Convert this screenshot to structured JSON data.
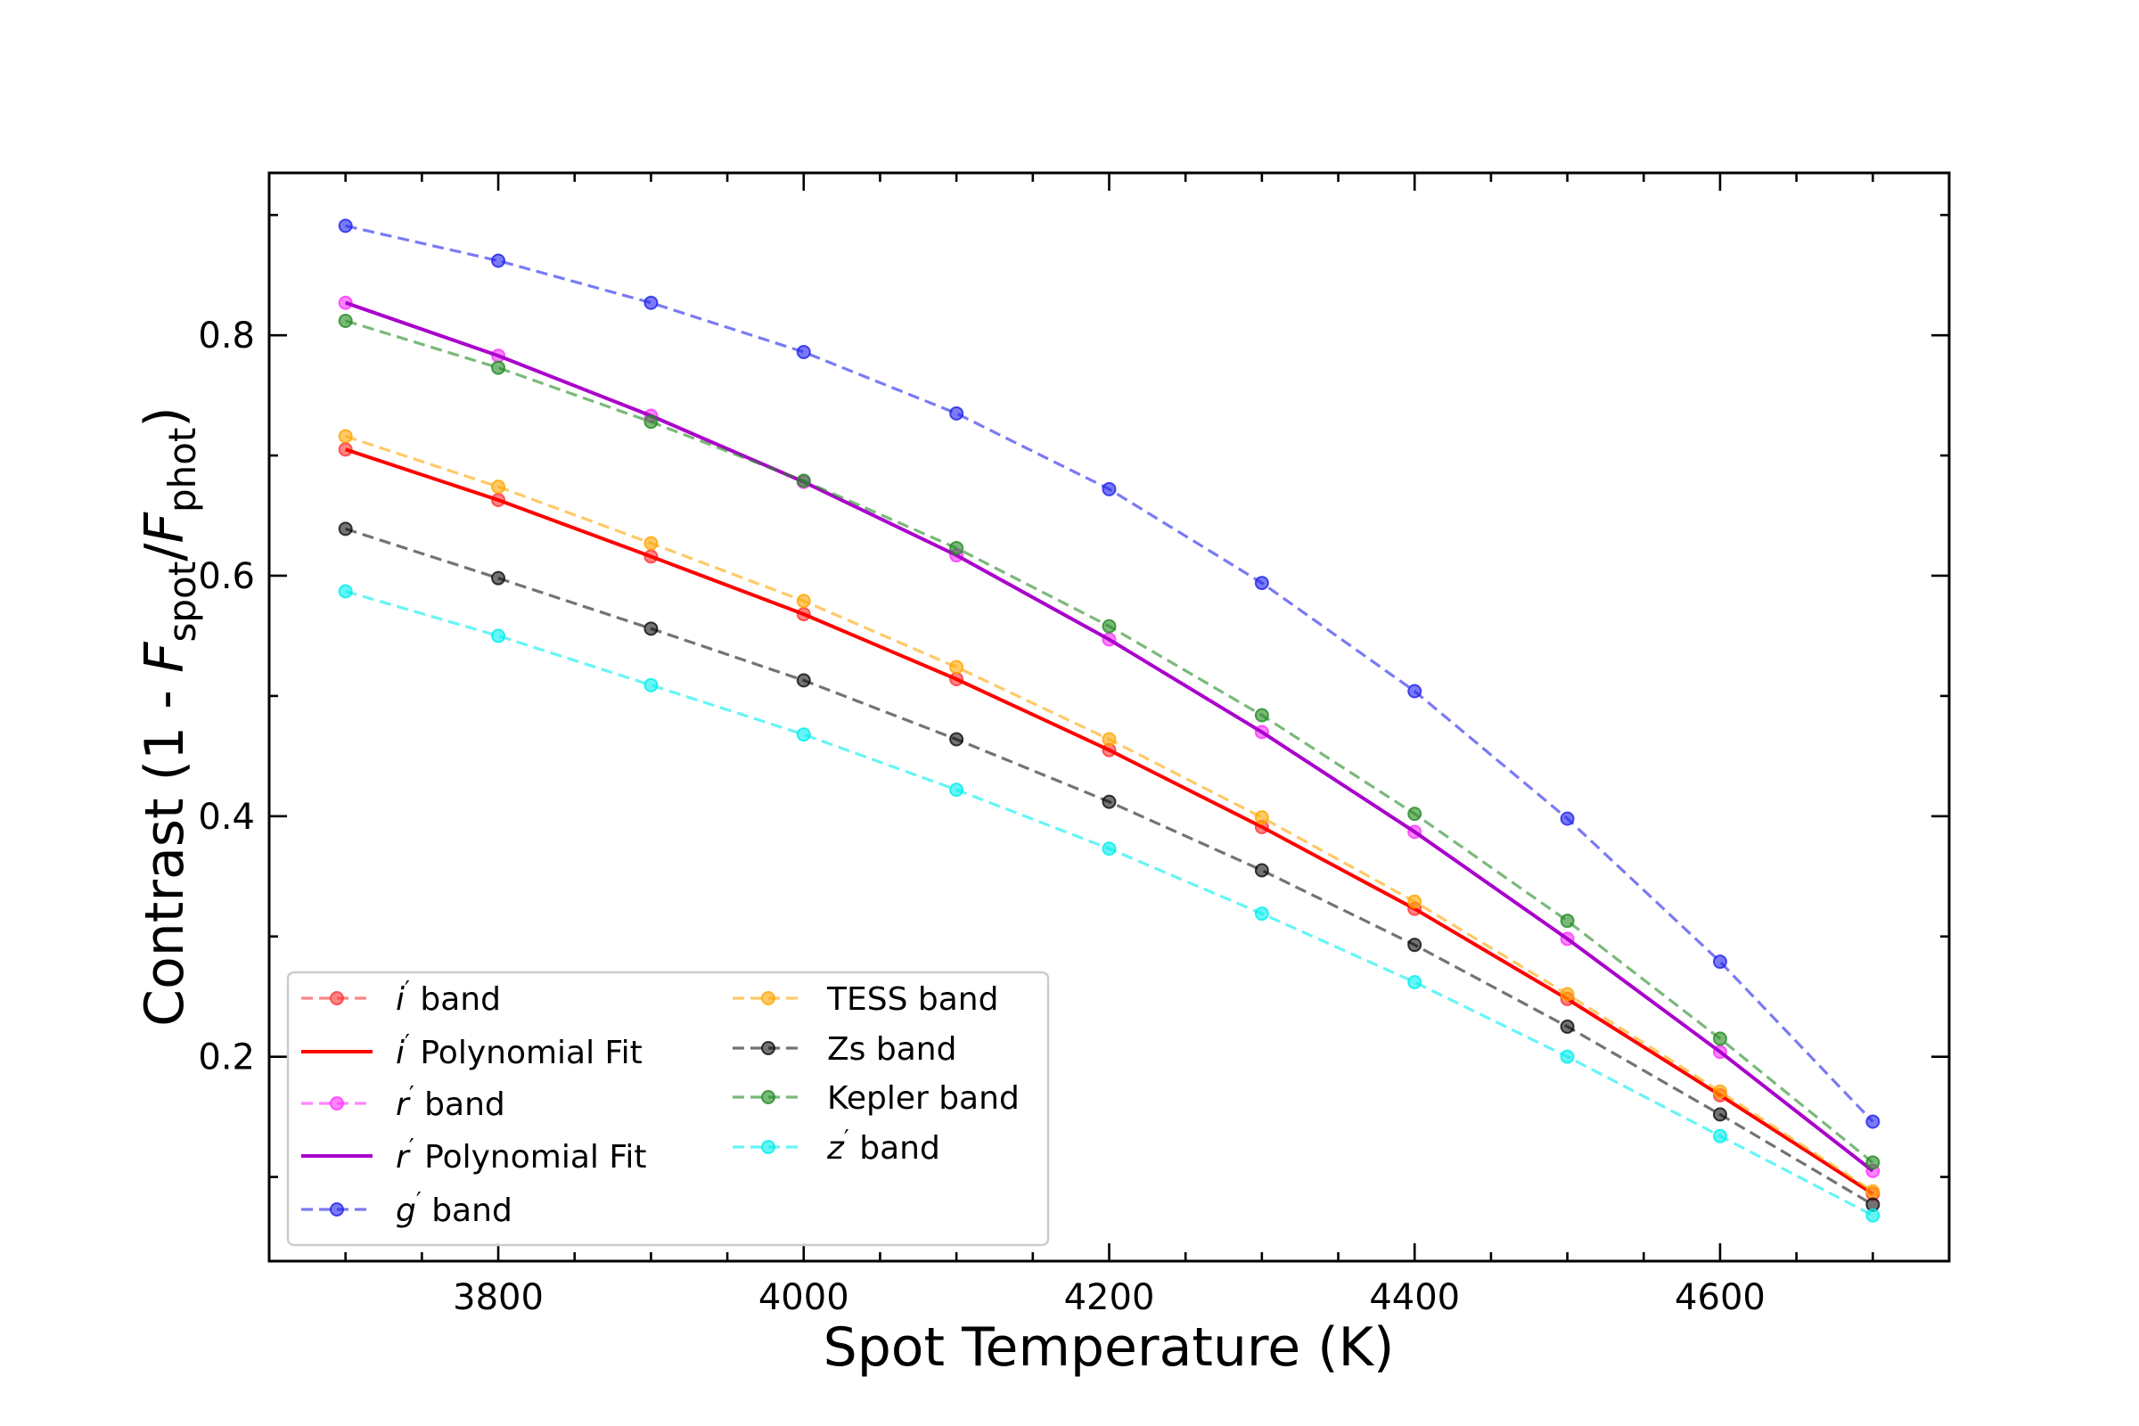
{
  "chart_data": {
    "type": "line",
    "title": "",
    "xlabel": "Spot Temperature (K)",
    "ylabel": {
      "prefix": "Contrast (1 - ",
      "f1": "F",
      "s1": "spot",
      "slash": "/",
      "f2": "F",
      "s2": "phot",
      "suffix": ")"
    },
    "xlim": [
      3650,
      4750
    ],
    "ylim": [
      0.03,
      0.935
    ],
    "xticks": [
      "3800",
      "4000",
      "4200",
      "4400",
      "4600"
    ],
    "yticks": [
      "0.2",
      "0.4",
      "0.6",
      "0.8"
    ],
    "grid": false,
    "legend_position": "lower-left",
    "x": [
      3700,
      3800,
      3900,
      4000,
      4100,
      4200,
      4300,
      4400,
      4500,
      4600,
      4700
    ],
    "series": [
      {
        "key": "i-band",
        "name": {
          "sym": "i",
          "rest": " band"
        },
        "style": "dashed-marker",
        "color": "#ff3333",
        "opacity": 0.6,
        "values": [
          0.705,
          0.663,
          0.616,
          0.568,
          0.514,
          0.455,
          0.391,
          0.323,
          0.248,
          0.168,
          0.086
        ]
      },
      {
        "key": "i-fit",
        "name": {
          "sym": "i",
          "rest": " Polynomial Fit"
        },
        "style": "solid",
        "color": "#ff0000",
        "opacity": 1,
        "values": [
          0.705,
          0.663,
          0.616,
          0.568,
          0.514,
          0.455,
          0.391,
          0.323,
          0.248,
          0.168,
          0.086
        ]
      },
      {
        "key": "r-band",
        "name": {
          "sym": "r",
          "rest": " band"
        },
        "style": "dashed-marker",
        "color": "#ff33ff",
        "opacity": 0.6,
        "values": [
          0.827,
          0.783,
          0.733,
          0.678,
          0.617,
          0.547,
          0.47,
          0.387,
          0.298,
          0.204,
          0.105
        ]
      },
      {
        "key": "r-fit",
        "name": {
          "sym": "r",
          "rest": " Polynomial Fit"
        },
        "style": "solid",
        "color": "#aa00cc",
        "opacity": 1,
        "values": [
          0.827,
          0.783,
          0.733,
          0.678,
          0.617,
          0.547,
          0.47,
          0.387,
          0.298,
          0.204,
          0.105
        ]
      },
      {
        "key": "g-band",
        "name": {
          "sym": "g",
          "rest": " band"
        },
        "style": "dashed-marker",
        "color": "#2222ee",
        "opacity": 0.6,
        "values": [
          0.891,
          0.862,
          0.827,
          0.786,
          0.735,
          0.672,
          0.594,
          0.504,
          0.398,
          0.279,
          0.146
        ]
      },
      {
        "key": "tess",
        "name": {
          "sym": "",
          "rest": "TESS band"
        },
        "style": "dashed-marker",
        "color": "#ffa500",
        "opacity": 0.6,
        "values": [
          0.716,
          0.674,
          0.627,
          0.579,
          0.524,
          0.464,
          0.399,
          0.329,
          0.252,
          0.171,
          0.088
        ]
      },
      {
        "key": "zs",
        "name": {
          "sym": "",
          "rest": "Zs band"
        },
        "style": "dashed-marker",
        "color": "#000000",
        "opacity": 0.55,
        "values": [
          0.639,
          0.598,
          0.556,
          0.513,
          0.464,
          0.412,
          0.355,
          0.293,
          0.225,
          0.152,
          0.077
        ]
      },
      {
        "key": "kepler",
        "name": {
          "sym": "",
          "rest": "Kepler band"
        },
        "style": "dashed-marker",
        "color": "#228b22",
        "opacity": 0.6,
        "values": [
          0.812,
          0.773,
          0.728,
          0.679,
          0.623,
          0.558,
          0.484,
          0.402,
          0.313,
          0.215,
          0.112
        ]
      },
      {
        "key": "z-band",
        "name": {
          "sym": "z",
          "rest": " band"
        },
        "style": "dashed-marker",
        "color": "#00eeee",
        "opacity": 0.6,
        "values": [
          0.587,
          0.55,
          0.509,
          0.468,
          0.422,
          0.373,
          0.319,
          0.262,
          0.2,
          0.134,
          0.068
        ]
      }
    ],
    "draw_order": [
      "i-band",
      "i-fit",
      "r-band",
      "r-fit",
      "g-band",
      "tess",
      "zs",
      "kepler",
      "z-band"
    ],
    "legend_columns": [
      [
        "i-band",
        "i-fit",
        "r-band",
        "r-fit",
        "g-band"
      ],
      [
        "tess",
        "zs",
        "kepler",
        "z-band"
      ]
    ]
  }
}
